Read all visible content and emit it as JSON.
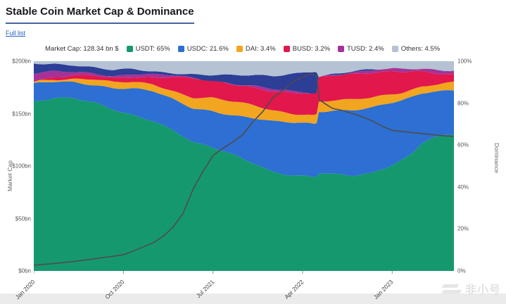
{
  "page": {
    "title": "Stable Coin Market Cap & Dominance",
    "full_list_link": "Full list",
    "watermark_text": "非小号"
  },
  "legend": {
    "market_cap_label": "Market Cap: 128.34 bn $",
    "items": [
      {
        "label": "USDT: 65%",
        "color": "#16986e"
      },
      {
        "label": "USDC: 21.6%",
        "color": "#2d6fd2"
      },
      {
        "label": "DAI: 3.4%",
        "color": "#f2a51f"
      },
      {
        "label": "BUSD: 3.2%",
        "color": "#e2174c"
      },
      {
        "label": "TUSD: 2.4%",
        "color": "#a63297"
      },
      {
        "label": "Others: 4.5%",
        "color": "#b4c2d4"
      }
    ]
  },
  "axes": {
    "left_title": "Market Cap",
    "right_title": "Dominance",
    "left_tick_labels": [
      "$200bn",
      "$150bn",
      "$100bn",
      "$50bn",
      "$0bn"
    ],
    "right_tick_labels": [
      "100%",
      "80%",
      "60%",
      "40%",
      "20%",
      "0%"
    ],
    "x_tick_labels": [
      "Jan 2020",
      "Oct 2020",
      "Jul 2021",
      "Apr 2022",
      "Jan 2023"
    ]
  },
  "chart_data": {
    "type": "area",
    "stacking": "percent",
    "title": "Stable Coin Market Cap & Dominance",
    "x_unit": "months since Jan 2020",
    "x_max": 42.2,
    "left_axis": {
      "label": "Market Cap",
      "unit": "bn $",
      "range": [
        0,
        200
      ],
      "tick_values": [
        200,
        150,
        100,
        50,
        0
      ]
    },
    "right_axis": {
      "label": "Dominance",
      "unit": "%",
      "range": [
        0,
        100
      ],
      "tick_values": [
        100,
        80,
        60,
        40,
        20,
        0
      ]
    },
    "x_tick_positions_months": [
      0,
      9,
      18,
      27,
      36
    ],
    "x": [
      0,
      2,
      4,
      6,
      8,
      10,
      12,
      14,
      16,
      18,
      20,
      22,
      24,
      26,
      27.5,
      28.4,
      28.55,
      30,
      32,
      34,
      36,
      37,
      38,
      39,
      40,
      41,
      42.2
    ],
    "series": [
      {
        "name": "USDT",
        "color": "#16986e",
        "values": [
          81,
          82.5,
          82,
          80,
          77,
          74.5,
          72,
          67,
          61,
          58.5,
          55.5,
          52,
          47.5,
          45.5,
          44.8,
          44.5,
          46.5,
          45.8,
          45.5,
          47,
          51,
          53,
          56,
          61,
          63,
          64,
          65
        ]
      },
      {
        "name": "USDC",
        "color": "#2d6fd2",
        "values": [
          8,
          7.5,
          8,
          9,
          10.5,
          12.5,
          13.5,
          14.5,
          16.5,
          18,
          19,
          21,
          23.5,
          25,
          25.5,
          25.5,
          29.5,
          31,
          31.5,
          31,
          29,
          28,
          26.5,
          23.5,
          22.5,
          22,
          21.6
        ]
      },
      {
        "name": "DAI",
        "color": "#f2a51f",
        "values": [
          1.5,
          1.6,
          1.8,
          2.5,
          2.2,
          2.8,
          3.5,
          4.5,
          5.5,
          6,
          6,
          5.8,
          5.5,
          4.8,
          4.5,
          4.3,
          4.8,
          4.6,
          4.4,
          4.4,
          4.3,
          4.2,
          4.2,
          3.8,
          3.6,
          3.5,
          3.4
        ]
      },
      {
        "name": "BUSD",
        "color": "#e2174c",
        "values": [
          0.4,
          0.6,
          1,
          1.5,
          2.2,
          3,
          3.5,
          6.5,
          8.5,
          8,
          8.5,
          9,
          9.5,
          9.5,
          9.7,
          9.7,
          11,
          11.5,
          12.5,
          12.5,
          11.2,
          10,
          8.5,
          6.5,
          5,
          4,
          3.2
        ]
      },
      {
        "name": "TUSD",
        "color": "#a63297",
        "values": [
          3,
          2.6,
          2.2,
          1.6,
          1.2,
          1,
          0.8,
          0.6,
          0.5,
          0.5,
          0.5,
          0.5,
          0.5,
          0.5,
          0.5,
          0.5,
          0.9,
          0.9,
          0.9,
          0.9,
          1,
          1.3,
          1.6,
          2,
          2.2,
          2.3,
          2.4
        ]
      },
      {
        "name": "unlabeled-navy-band",
        "color": "#2c3e96",
        "values": [
          5.1,
          4.2,
          3.5,
          2.4,
          2.4,
          2.2,
          1.7,
          1.6,
          2,
          2.5,
          3.5,
          4.7,
          6.5,
          9,
          10.3,
          11,
          0,
          0,
          0,
          0,
          0,
          0,
          0,
          0,
          0,
          0,
          0
        ]
      },
      {
        "name": "Others",
        "color": "#b4c2d4",
        "values": [
          1,
          1,
          1.5,
          3,
          4.5,
          4,
          5,
          5.3,
          6,
          6.5,
          7,
          7,
          7,
          5.7,
          4.7,
          4.5,
          7.3,
          6.2,
          5.2,
          4.2,
          3.5,
          3.5,
          3.2,
          3.2,
          3.7,
          4.2,
          4.5
        ]
      }
    ],
    "line_series": {
      "name": "Market Cap",
      "axis": "left",
      "unit": "bn $",
      "current_value": 128.34,
      "color": "#4d4d4d",
      "points": [
        [
          0,
          5.5
        ],
        [
          2,
          7
        ],
        [
          4,
          9
        ],
        [
          6,
          11.5
        ],
        [
          8,
          14
        ],
        [
          9,
          15.5
        ],
        [
          10,
          19
        ],
        [
          12,
          27
        ],
        [
          13,
          33
        ],
        [
          14,
          42
        ],
        [
          15,
          55
        ],
        [
          16,
          78
        ],
        [
          17,
          95
        ],
        [
          18,
          110
        ],
        [
          19,
          117
        ],
        [
          20,
          123
        ],
        [
          21,
          130
        ],
        [
          22,
          142
        ],
        [
          23,
          152
        ],
        [
          24,
          165
        ],
        [
          25,
          172
        ],
        [
          26,
          180
        ],
        [
          27,
          185
        ],
        [
          27.8,
          188
        ],
        [
          28.4,
          186
        ],
        [
          28.7,
          163
        ],
        [
          29.5,
          158
        ],
        [
          30,
          155
        ],
        [
          31,
          153
        ],
        [
          32,
          150
        ],
        [
          33,
          147
        ],
        [
          34,
          143
        ],
        [
          35,
          138
        ],
        [
          36,
          134
        ],
        [
          37,
          133
        ],
        [
          38,
          132
        ],
        [
          39,
          131
        ],
        [
          40,
          130
        ],
        [
          41,
          129
        ],
        [
          42.2,
          128.3
        ]
      ]
    }
  }
}
